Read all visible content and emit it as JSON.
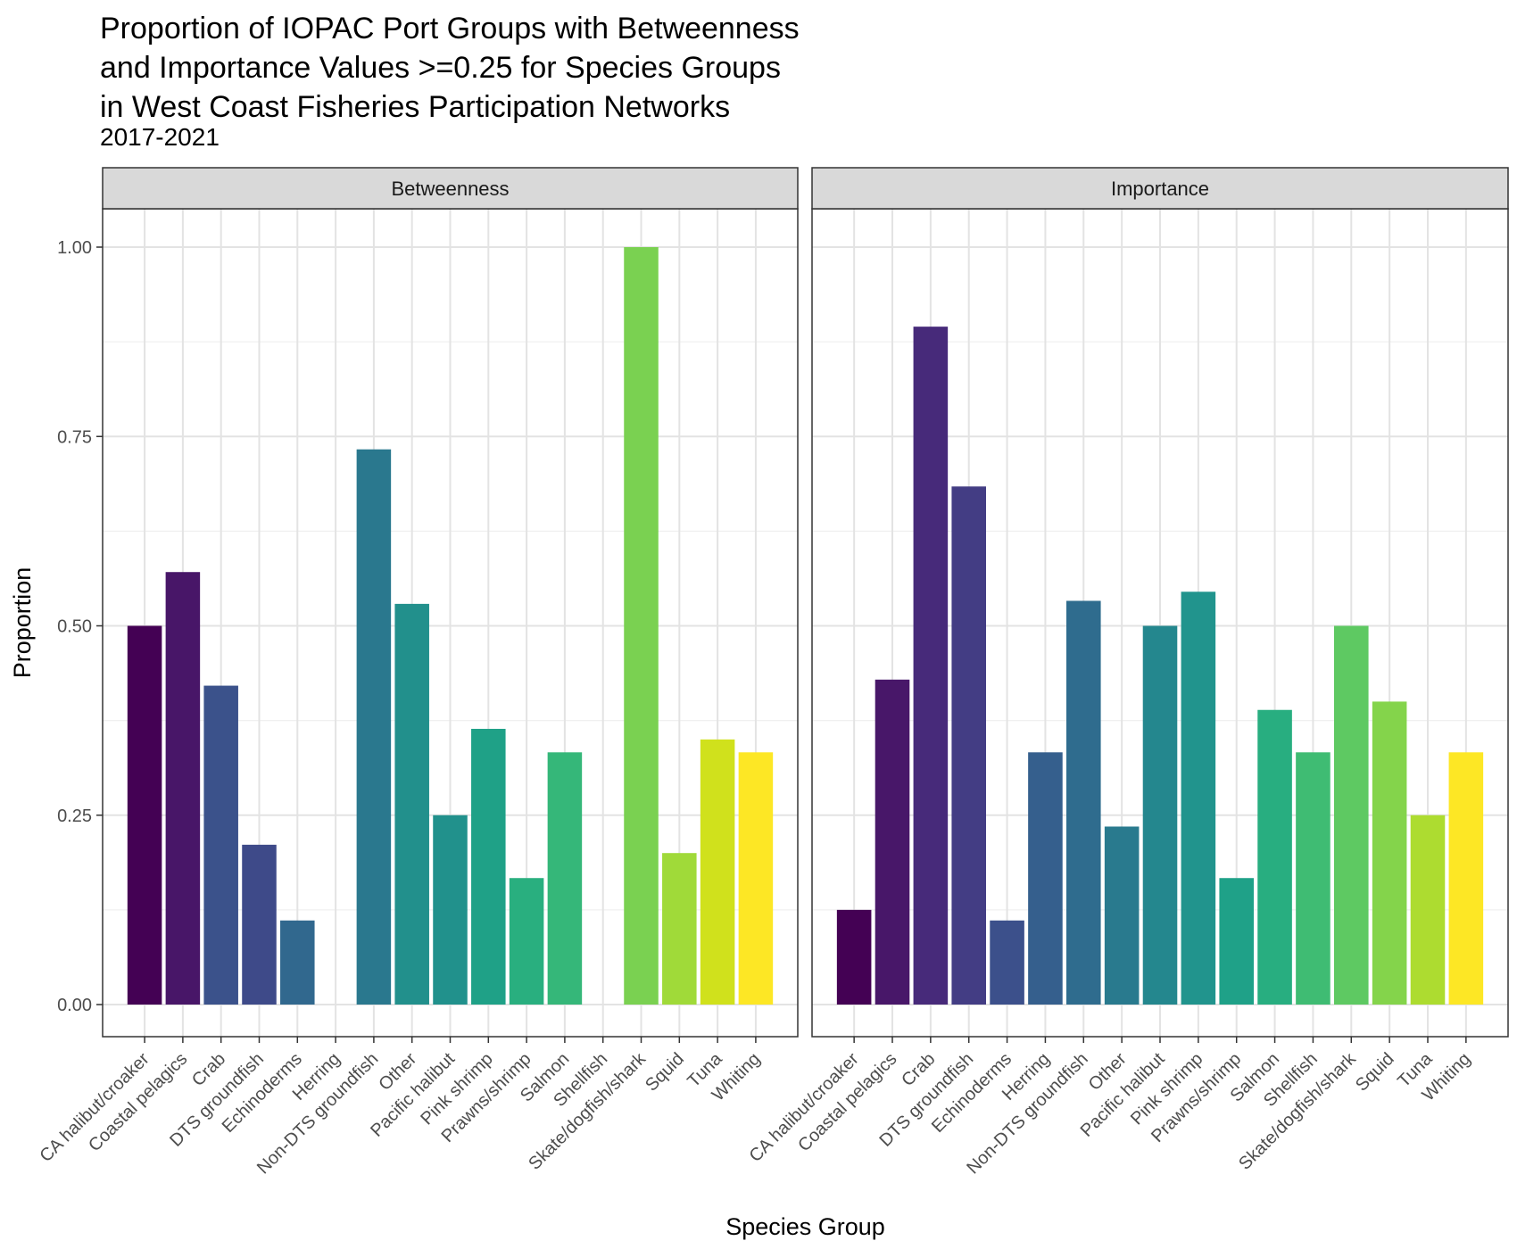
{
  "chart_data": {
    "type": "bar",
    "title_lines": [
      "Proportion of IOPAC Port Groups with Betweenness",
      "and Importance Values >=0.25 for Species Groups",
      "in West Coast Fisheries Participation Networks"
    ],
    "subtitle": "2017-2021",
    "xlabel": "Species Group",
    "ylabel": "Proportion",
    "ylim": [
      0,
      1
    ],
    "y_ticks": [
      "0.00",
      "0.25",
      "0.50",
      "0.75",
      "1.00"
    ],
    "grid": true,
    "categories": [
      "CA halibut/croaker",
      "Coastal pelagics",
      "Crab",
      "DTS groundfish",
      "Echinoderms",
      "Herring",
      "Non-DTS groundfish",
      "Other",
      "Pacific halibut",
      "Pink shrimp",
      "Prawns/shrimp",
      "Salmon",
      "Shellfish",
      "Skate/dogfish/shark",
      "Squid",
      "Tuna",
      "Whiting"
    ],
    "panels": [
      {
        "name": "Betweenness",
        "values": [
          0.5,
          0.571,
          0.421,
          0.211,
          0.111,
          0,
          0.733,
          0.529,
          0.25,
          0.364,
          0.167,
          0.333,
          0,
          1.0,
          0.2,
          0.35,
          0.333
        ],
        "colors": [
          "#440154",
          "#481668",
          "#3B528B",
          "#3E4A89",
          "#31688E",
          null,
          "#2A788E",
          "#22908C",
          "#21918C",
          "#1FA187",
          "#29AF7F",
          "#35B779",
          null,
          "#7AD151",
          "#A0DA39",
          "#D0E11C",
          "#FDE725"
        ]
      },
      {
        "name": "Importance",
        "values": [
          0.125,
          0.429,
          0.895,
          0.684,
          0.111,
          0.333,
          0.533,
          0.235,
          0.5,
          0.545,
          0.167,
          0.389,
          0.333,
          0.5,
          0.4,
          0.25,
          0.333
        ],
        "colors": [
          "#440154",
          "#481769",
          "#472A7A",
          "#433D84",
          "#3C508B",
          "#355F8D",
          "#2F6C8E",
          "#297A8E",
          "#24878E",
          "#21948D",
          "#1FA188",
          "#28AE80",
          "#3FBC73",
          "#5EC962",
          "#84D44B",
          "#ADDC30",
          "#FDE725"
        ]
      }
    ]
  }
}
